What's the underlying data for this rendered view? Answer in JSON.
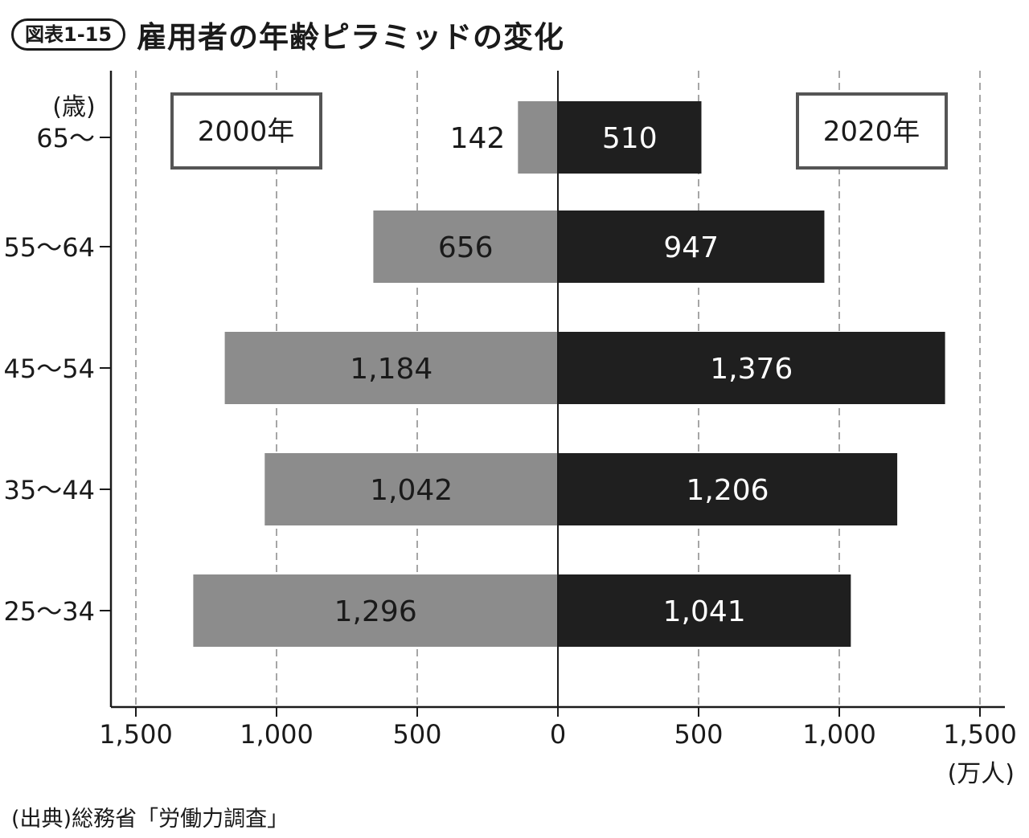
{
  "figure": {
    "number": "図表1-15",
    "title": "雇用者の年齢ピラミッドの変化",
    "source": "(出典)総務省「労働力調査」"
  },
  "chart_data": {
    "type": "bar",
    "orientation": "horizontal-pyramid",
    "categories": [
      "65〜",
      "55〜64",
      "45〜54",
      "35〜44",
      "25〜34"
    ],
    "series": [
      {
        "name": "2000年",
        "side": "left",
        "values": [
          142,
          656,
          1184,
          1042,
          1296
        ],
        "labels": [
          "142",
          "656",
          "1,184",
          "1,042",
          "1,296"
        ],
        "color": "#8c8c8c"
      },
      {
        "name": "2020年",
        "side": "right",
        "values": [
          510,
          947,
          1376,
          1206,
          1041
        ],
        "labels": [
          "510",
          "947",
          "1,376",
          "1,206",
          "1,041"
        ],
        "color": "#1f1f1f"
      }
    ],
    "y_unit_label": "(歳)",
    "x_unit_label": "(万人)",
    "xlim": [
      -1500,
      1500
    ],
    "x_ticks": [
      -1500,
      -1000,
      -500,
      0,
      500,
      1000,
      1500
    ],
    "x_tick_labels": [
      "1,500",
      "1,000",
      "500",
      "0",
      "500",
      "1,000",
      "1,500"
    ],
    "grid": "vertical-dashed"
  }
}
